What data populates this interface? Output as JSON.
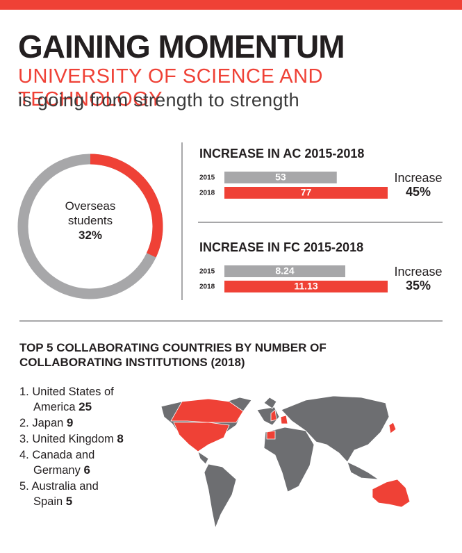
{
  "header": {
    "title": "GAINING MOMENTUM",
    "subtitle": "UNIVERSITY OF SCIENCE AND TECHNOLOGY",
    "tagline": "is going from strength to strength"
  },
  "chart_data": [
    {
      "type": "donut",
      "label": "Overseas students",
      "values": [
        32
      ],
      "value_labels": [
        "32%"
      ],
      "color": "#ef4136",
      "track_color": "#a7a7a9"
    },
    {
      "type": "bar",
      "title": "INCREASE IN AC 2015-2018",
      "categories": [
        "2015",
        "2018"
      ],
      "values": [
        53,
        77
      ],
      "colors": [
        "#a7a7a9",
        "#ef4136"
      ],
      "xlim": [
        0,
        77
      ],
      "annotation": "Increase",
      "annotation_value": "45%"
    },
    {
      "type": "bar",
      "title": "INCREASE IN FC 2015-2018",
      "categories": [
        "2015",
        "2018"
      ],
      "values": [
        8.24,
        11.13
      ],
      "colors": [
        "#a7a7a9",
        "#ef4136"
      ],
      "xlim": [
        0,
        11.13
      ],
      "annotation": "Increase",
      "annotation_value": "35%"
    }
  ],
  "countries": {
    "title": "TOP 5 COLLABORATING COUNTRIES BY NUMBER OF COLLABORATING INSTITUTIONS (2018)",
    "items": [
      {
        "rank": "1.",
        "name": "United States of America",
        "value": 25
      },
      {
        "rank": "2.",
        "name": "Japan",
        "value": 9
      },
      {
        "rank": "3.",
        "name": "United Kingdom",
        "value": 8
      },
      {
        "rank": "4.",
        "name": "Canada and Germany",
        "value": 6
      },
      {
        "rank": "5.",
        "name": "Australia and Spain",
        "value": 5
      }
    ]
  }
}
